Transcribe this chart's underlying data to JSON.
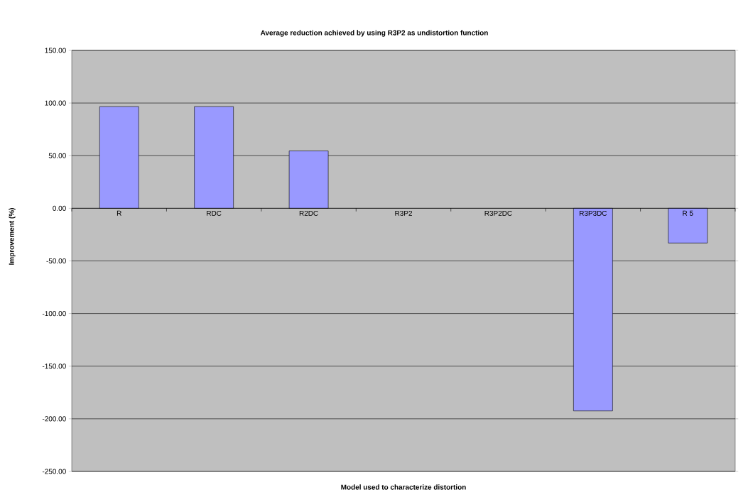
{
  "chart_data": {
    "type": "bar",
    "title": "Average reduction achieved  by using R3P2 as undistortion function",
    "xlabel": "Model used to characterize distortion",
    "ylabel": "Improvement (%)",
    "categories": [
      "R",
      "RDC",
      "R2DC",
      "R3P2",
      "R3P2DC",
      "R3P3DC",
      "R 5"
    ],
    "values": [
      96.6,
      96.6,
      54.5,
      0,
      0,
      -192.5,
      -33
    ],
    "color": "#9999ff",
    "ylim": [
      -250,
      150
    ],
    "yticks": [
      {
        "value": -250,
        "label": "-250.00"
      },
      {
        "value": -200,
        "label": "-200.00"
      },
      {
        "value": -150,
        "label": "-150.00"
      },
      {
        "value": -100,
        "label": "-100.00"
      },
      {
        "value": -50,
        "label": "-50.00"
      },
      {
        "value": 0,
        "label": "0.00"
      },
      {
        "value": 50,
        "label": "50.00"
      },
      {
        "value": 100,
        "label": "100.00"
      },
      {
        "value": 150,
        "label": "150.00"
      }
    ],
    "grid": "y"
  }
}
